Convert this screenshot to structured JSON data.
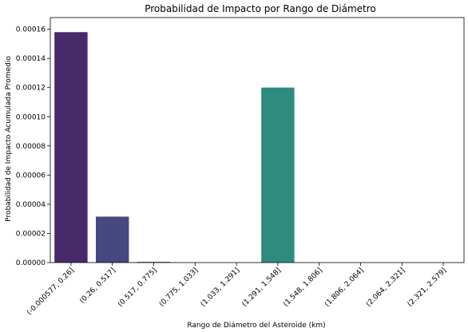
{
  "chart_data": {
    "type": "bar",
    "title": "Probabilidad de Impacto por Rango de Diámetro",
    "xlabel": "Rango de Diámetro del Asteroide (km)",
    "ylabel": "Probabilidad de Impacto Acumulada Promedio",
    "categories": [
      "(-0.000577, 0.26]",
      "(0.26, 0.517]",
      "(0.517, 0.775]",
      "(0.775, 1.033]",
      "(1.033, 1.291]",
      "(1.291, 1.548]",
      "(1.548, 1.806]",
      "(1.806, 2.064]",
      "(2.064, 2.321]",
      "(2.321, 2.579]"
    ],
    "values": [
      0.000158,
      3.15e-05,
      5e-07,
      0,
      0,
      0.00012,
      0,
      0,
      0,
      0
    ],
    "colors": [
      "#482a6a",
      "#47487f",
      "#3d5f8a",
      "#356f8c",
      "#2b7f8d",
      "#2e8b7d",
      "#36a17a",
      "#4cb272",
      "#7ec95a",
      "#bfd93a"
    ],
    "ylim": [
      0,
      0.000168
    ],
    "yticks": [
      "0.00000",
      "0.00002",
      "0.00004",
      "0.00006",
      "0.00008",
      "0.00010",
      "0.00012",
      "0.00014",
      "0.00016"
    ],
    "grid": false,
    "legend": "none"
  }
}
